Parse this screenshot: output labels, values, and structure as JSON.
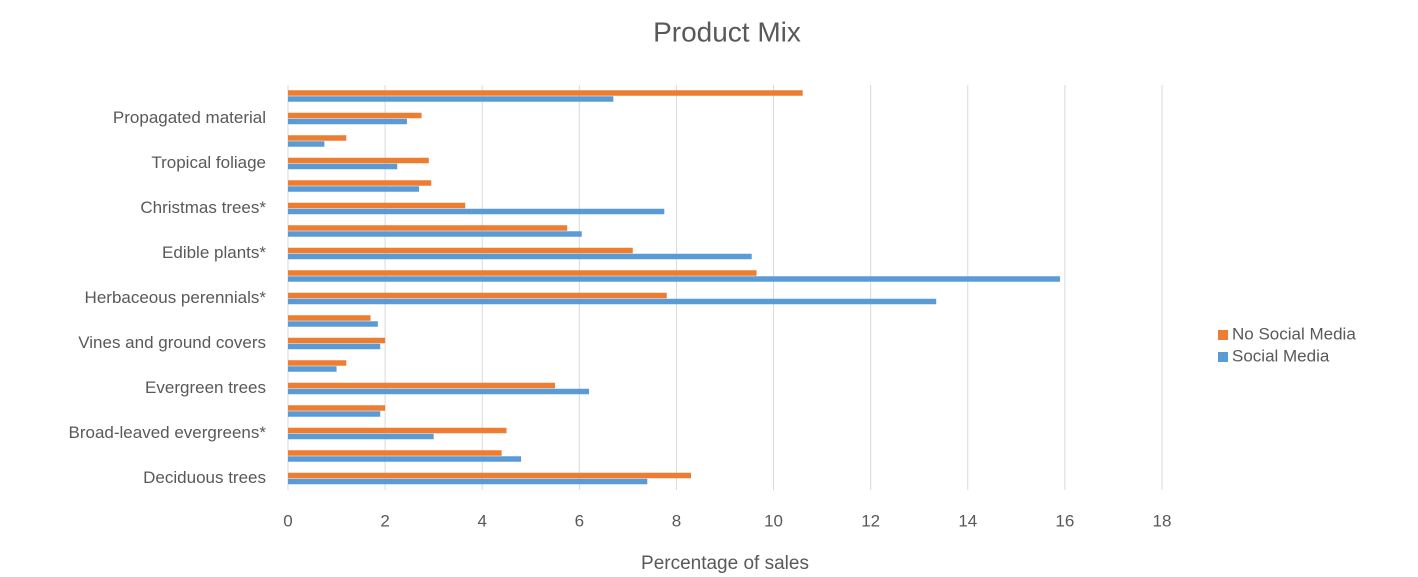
{
  "chart_data": {
    "type": "hbar",
    "title": "Product Mix",
    "xlabel": "Percentage of sales",
    "categories": [
      "Deciduous trees",
      null,
      "Broad-leaved evergreens*",
      null,
      "Evergreen trees",
      null,
      "Vines and ground covers",
      null,
      "Herbaceous perennials*",
      null,
      "Edible plants*",
      null,
      "Christmas trees*",
      null,
      "Tropical foliage",
      null,
      "Propagated material",
      null
    ],
    "series": [
      {
        "name": "No Social Media",
        "color": "#ed7d31",
        "values": [
          8.3,
          4.4,
          4.5,
          2.0,
          5.5,
          1.2,
          2.0,
          1.7,
          7.8,
          9.65,
          7.1,
          5.75,
          3.65,
          2.95,
          2.9,
          1.2,
          2.75,
          10.6
        ]
      },
      {
        "name": "Social Media",
        "color": "#5b9bd5",
        "values": [
          7.4,
          4.8,
          3.0,
          1.9,
          6.2,
          1.0,
          1.9,
          1.85,
          13.35,
          15.9,
          9.55,
          6.05,
          7.75,
          2.7,
          2.25,
          0.75,
          2.45,
          6.7
        ]
      }
    ],
    "xlim": [
      0,
      18
    ],
    "xticks": [
      0,
      2,
      4,
      6,
      8,
      10,
      12,
      14,
      16,
      18
    ],
    "grid": true,
    "legend": "right"
  }
}
